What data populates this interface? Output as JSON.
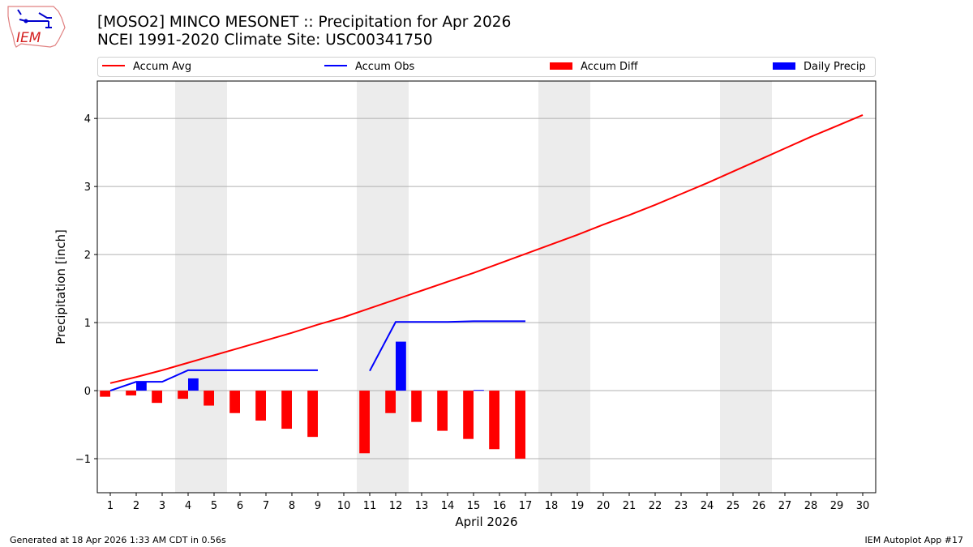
{
  "header": {
    "title": "[MOSO2] MINCO MESONET :: Precipitation for Apr 2026",
    "subtitle": "NCEI 1991-2020 Climate Site: USC00341750",
    "logo_text": "IEM"
  },
  "footer": {
    "left": "Generated at 18 Apr 2026 1:33 AM CDT in 0.56s",
    "right": "IEM Autoplot App #17"
  },
  "colors": {
    "avg": "#ff0000",
    "obs": "#0000ff",
    "diff": "#ff0000",
    "precip": "#0000ff",
    "weekend": "#ececec",
    "grid": "#b0b0b0"
  },
  "chart_data": {
    "type": "bar",
    "xlabel": "April 2026",
    "ylabel": "Precipitation [inch]",
    "xlim": [
      0.5,
      30.5
    ],
    "ylim": [
      -1.5,
      4.55
    ],
    "grid": "horizontal",
    "legend_placement": "top",
    "legend": [
      "Accum Avg",
      "Accum Obs",
      "Accum Diff",
      "Daily Precip"
    ],
    "x_ticks": [
      1,
      2,
      3,
      4,
      5,
      6,
      7,
      8,
      9,
      10,
      11,
      12,
      13,
      14,
      15,
      16,
      17,
      18,
      19,
      20,
      21,
      22,
      23,
      24,
      25,
      26,
      27,
      28,
      29,
      30
    ],
    "y_ticks": [
      -1,
      0,
      1,
      2,
      3,
      4
    ],
    "y_tick_labels": [
      "−1",
      "0",
      "1",
      "2",
      "3",
      "4"
    ],
    "weekend_spans": [
      [
        3.5,
        5.5
      ],
      [
        10.5,
        12.5
      ],
      [
        17.5,
        19.5
      ],
      [
        24.5,
        26.5
      ]
    ],
    "days": [
      1,
      2,
      3,
      4,
      5,
      6,
      7,
      8,
      9,
      10,
      11,
      12,
      13,
      14,
      15,
      16,
      17,
      18,
      19,
      20,
      21,
      22,
      23,
      24,
      25,
      26,
      27,
      28,
      29,
      30
    ],
    "series": [
      {
        "name": "Accum Avg",
        "kind": "line",
        "values": [
          0.11,
          0.2,
          0.3,
          0.41,
          0.52,
          0.63,
          0.74,
          0.85,
          0.97,
          1.08,
          1.21,
          1.34,
          1.47,
          1.6,
          1.73,
          1.87,
          2.01,
          2.15,
          2.29,
          2.44,
          2.58,
          2.73,
          2.89,
          3.05,
          3.22,
          3.39,
          3.56,
          3.73,
          3.89,
          4.05
        ]
      },
      {
        "name": "Accum Obs",
        "kind": "line",
        "values": [
          0.0,
          0.13,
          0.13,
          0.3,
          0.3,
          0.3,
          0.3,
          0.3,
          0.3,
          null,
          0.29,
          1.01,
          1.01,
          1.01,
          1.02,
          1.02,
          1.02
        ]
      },
      {
        "name": "Accum Diff",
        "kind": "bar",
        "values": [
          -0.09,
          -0.07,
          -0.18,
          -0.12,
          -0.22,
          -0.33,
          -0.44,
          -0.56,
          -0.68,
          null,
          -0.92,
          -0.33,
          -0.46,
          -0.59,
          -0.71,
          -0.86,
          -1.0
        ]
      },
      {
        "name": "Daily Precip",
        "kind": "bar",
        "values": [
          0,
          0.13,
          0,
          0.18,
          0,
          0,
          0,
          0,
          0,
          null,
          0,
          0.72,
          0,
          0,
          0.01,
          0,
          0
        ]
      }
    ]
  }
}
